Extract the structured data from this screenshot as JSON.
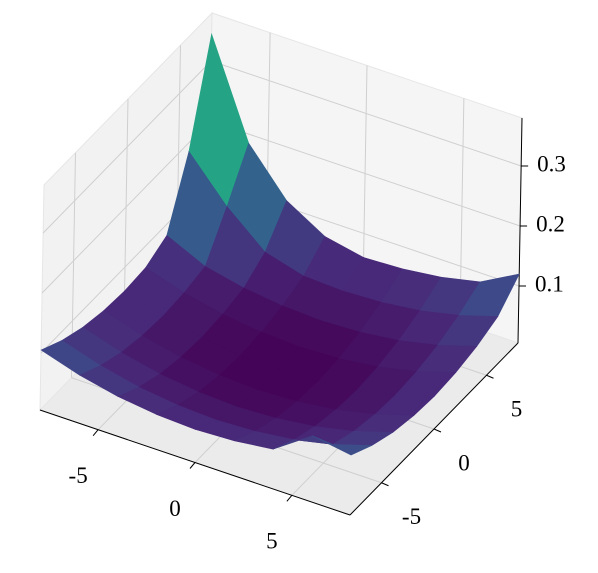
{
  "chart_data": {
    "type": "surface",
    "colormap": "viridis",
    "x": [
      -8,
      -6,
      -4,
      -2,
      0,
      2,
      4,
      6,
      8
    ],
    "y": [
      -8,
      -6,
      -4,
      -2,
      0,
      2,
      4,
      6,
      8
    ],
    "z": [
      [
        0.105,
        0.085,
        0.071,
        0.063,
        0.06,
        0.063,
        0.071,
        0.115,
        0.105
      ],
      [
        0.085,
        0.065,
        0.051,
        0.043,
        0.04,
        0.043,
        0.051,
        0.065,
        0.085
      ],
      [
        0.071,
        0.051,
        0.037,
        0.029,
        0.026,
        0.029,
        0.037,
        0.051,
        0.071
      ],
      [
        0.063,
        0.043,
        0.029,
        0.021,
        0.018,
        0.021,
        0.029,
        0.043,
        0.063
      ],
      [
        0.06,
        0.04,
        0.026,
        0.018,
        0.015,
        0.018,
        0.026,
        0.04,
        0.06
      ],
      [
        0.063,
        0.043,
        0.029,
        0.021,
        0.018,
        0.021,
        0.029,
        0.043,
        0.063
      ],
      [
        0.081,
        0.051,
        0.037,
        0.029,
        0.026,
        0.029,
        0.037,
        0.051,
        0.071
      ],
      [
        0.185,
        0.115,
        0.061,
        0.043,
        0.04,
        0.043,
        0.051,
        0.065,
        0.085
      ],
      [
        0.345,
        0.185,
        0.111,
        0.073,
        0.06,
        0.063,
        0.071,
        0.085,
        0.12
      ]
    ],
    "xlim": [
      -8,
      8
    ],
    "ylim": [
      -8,
      8
    ],
    "zlim": [
      0.005,
      0.38
    ],
    "xticks": [
      -5,
      0,
      5
    ],
    "yticks": [
      -5,
      0,
      5
    ],
    "zticks": [
      0.1,
      0.2,
      0.3
    ],
    "grid": true
  }
}
